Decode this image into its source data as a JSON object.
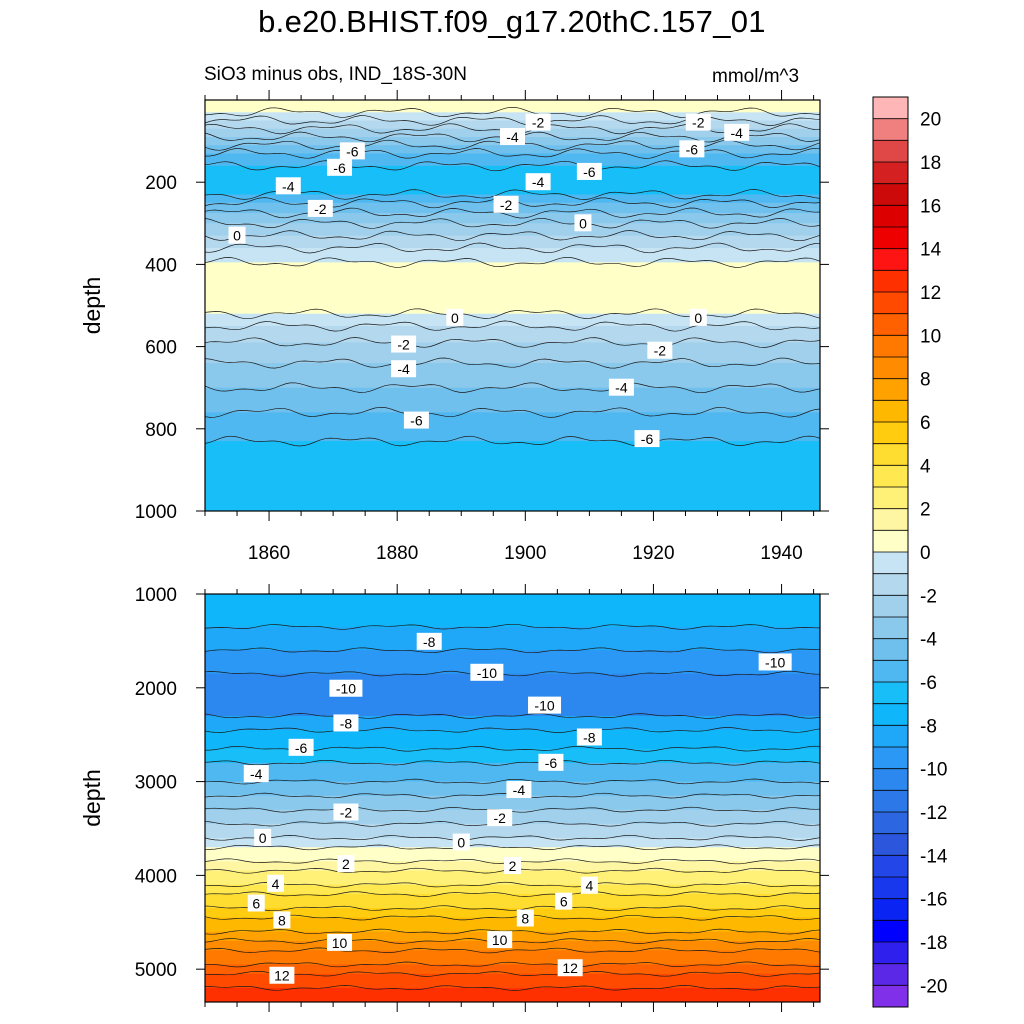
{
  "title": "b.e20.BHIST.f09_g17.20thC.157_01",
  "subtitle": "SiO3 minus obs, IND_18S-30N",
  "units": "mmol/m^3",
  "chart_data": {
    "type": "heatmap",
    "plot_kind": "depth-time filled contour (anomaly)",
    "x": {
      "range": [
        1850,
        1946
      ],
      "ticks": [
        1860,
        1880,
        1900,
        1920,
        1940
      ]
    },
    "panels": [
      {
        "name": "upper",
        "ylabel": "depth",
        "ylim": [
          0,
          1000
        ],
        "yticks": [
          200,
          400,
          600,
          800,
          1000
        ],
        "contour_interval": 1,
        "bands": [
          {
            "from": 0,
            "to": 30,
            "value": 0.5
          },
          {
            "from": 30,
            "to": 50,
            "value": -0.5
          },
          {
            "from": 50,
            "to": 70,
            "value": -1.5
          },
          {
            "from": 70,
            "to": 90,
            "value": -2.5
          },
          {
            "from": 90,
            "to": 110,
            "value": -3.5
          },
          {
            "from": 110,
            "to": 130,
            "value": -4.5
          },
          {
            "from": 130,
            "to": 160,
            "value": -5.5
          },
          {
            "from": 160,
            "to": 230,
            "value": -6.5
          },
          {
            "from": 230,
            "to": 250,
            "value": -5.5
          },
          {
            "from": 250,
            "to": 275,
            "value": -4.5
          },
          {
            "from": 275,
            "to": 300,
            "value": -3.5
          },
          {
            "from": 300,
            "to": 330,
            "value": -2.5
          },
          {
            "from": 330,
            "to": 360,
            "value": -1.5
          },
          {
            "from": 360,
            "to": 395,
            "value": -0.5
          },
          {
            "from": 395,
            "to": 520,
            "value": 0.5
          },
          {
            "from": 520,
            "to": 550,
            "value": -0.5
          },
          {
            "from": 550,
            "to": 590,
            "value": -1.5
          },
          {
            "from": 590,
            "to": 640,
            "value": -2.5
          },
          {
            "from": 640,
            "to": 700,
            "value": -3.5
          },
          {
            "from": 700,
            "to": 760,
            "value": -4.5
          },
          {
            "from": 760,
            "to": 830,
            "value": -5.5
          },
          {
            "from": 830,
            "to": 1000,
            "value": -6.5
          }
        ],
        "labels": [
          {
            "text": "-2",
            "x": 1902,
            "y": 55
          },
          {
            "text": "-2",
            "x": 1927,
            "y": 55
          },
          {
            "text": "-4",
            "x": 1898,
            "y": 90
          },
          {
            "text": "-4",
            "x": 1933,
            "y": 80
          },
          {
            "text": "-6",
            "x": 1873,
            "y": 125
          },
          {
            "text": "-6",
            "x": 1926,
            "y": 120
          },
          {
            "text": "-6",
            "x": 1871,
            "y": 165
          },
          {
            "text": "-6",
            "x": 1910,
            "y": 175
          },
          {
            "text": "-4",
            "x": 1863,
            "y": 210
          },
          {
            "text": "-4",
            "x": 1902,
            "y": 200
          },
          {
            "text": "-2",
            "x": 1868,
            "y": 265
          },
          {
            "text": "-2",
            "x": 1897,
            "y": 255
          },
          {
            "text": "0",
            "x": 1855,
            "y": 330
          },
          {
            "text": "0",
            "x": 1909,
            "y": 300
          },
          {
            "text": "0",
            "x": 1889,
            "y": 530
          },
          {
            "text": "0",
            "x": 1927,
            "y": 530
          },
          {
            "text": "-2",
            "x": 1881,
            "y": 595
          },
          {
            "text": "-2",
            "x": 1921,
            "y": 610
          },
          {
            "text": "-4",
            "x": 1881,
            "y": 655
          },
          {
            "text": "-4",
            "x": 1915,
            "y": 700
          },
          {
            "text": "-6",
            "x": 1883,
            "y": 780
          },
          {
            "text": "-6",
            "x": 1919,
            "y": 825
          }
        ]
      },
      {
        "name": "lower",
        "ylabel": "depth",
        "ylim": [
          1000,
          5350
        ],
        "yticks": [
          1000,
          2000,
          3000,
          4000,
          5000
        ],
        "contour_interval": 1,
        "bands": [
          {
            "from": 1000,
            "to": 1350,
            "value": -7.5
          },
          {
            "from": 1350,
            "to": 1600,
            "value": -8.5
          },
          {
            "from": 1600,
            "to": 1850,
            "value": -9.5
          },
          {
            "from": 1850,
            "to": 2300,
            "value": -10.5
          },
          {
            "from": 2300,
            "to": 2450,
            "value": -8.5
          },
          {
            "from": 2450,
            "to": 2650,
            "value": -7.5
          },
          {
            "from": 2650,
            "to": 2800,
            "value": -6.5
          },
          {
            "from": 2800,
            "to": 3000,
            "value": -5.5
          },
          {
            "from": 3000,
            "to": 3150,
            "value": -4.5
          },
          {
            "from": 3150,
            "to": 3300,
            "value": -3.5
          },
          {
            "from": 3300,
            "to": 3450,
            "value": -2.5
          },
          {
            "from": 3450,
            "to": 3600,
            "value": -1.5
          },
          {
            "from": 3600,
            "to": 3700,
            "value": -0.5
          },
          {
            "from": 3700,
            "to": 3850,
            "value": 0.5
          },
          {
            "from": 3850,
            "to": 3950,
            "value": 1.5
          },
          {
            "from": 3950,
            "to": 4100,
            "value": 2.5
          },
          {
            "from": 4100,
            "to": 4200,
            "value": 3.5
          },
          {
            "from": 4200,
            "to": 4350,
            "value": 4.5
          },
          {
            "from": 4350,
            "to": 4450,
            "value": 5.5
          },
          {
            "from": 4450,
            "to": 4600,
            "value": 6.5
          },
          {
            "from": 4600,
            "to": 4700,
            "value": 7.5
          },
          {
            "from": 4700,
            "to": 4800,
            "value": 8.5
          },
          {
            "from": 4800,
            "to": 4950,
            "value": 9.5
          },
          {
            "from": 4950,
            "to": 5050,
            "value": 10.5
          },
          {
            "from": 5050,
            "to": 5200,
            "value": 11.5
          },
          {
            "from": 5200,
            "to": 5350,
            "value": 12.5
          }
        ],
        "labels": [
          {
            "text": "-8",
            "x": 1885,
            "y": 1510
          },
          {
            "text": "-10",
            "x": 1894,
            "y": 1840
          },
          {
            "text": "-10",
            "x": 1939,
            "y": 1730
          },
          {
            "text": "-10",
            "x": 1872,
            "y": 2010
          },
          {
            "text": "-10",
            "x": 1903,
            "y": 2190
          },
          {
            "text": "-8",
            "x": 1872,
            "y": 2380
          },
          {
            "text": "-8",
            "x": 1910,
            "y": 2530
          },
          {
            "text": "-6",
            "x": 1865,
            "y": 2640
          },
          {
            "text": "-6",
            "x": 1904,
            "y": 2800
          },
          {
            "text": "-4",
            "x": 1858,
            "y": 2920
          },
          {
            "text": "-4",
            "x": 1899,
            "y": 3090
          },
          {
            "text": "-2",
            "x": 1872,
            "y": 3330
          },
          {
            "text": "-2",
            "x": 1896,
            "y": 3390
          },
          {
            "text": "0",
            "x": 1859,
            "y": 3600
          },
          {
            "text": "0",
            "x": 1890,
            "y": 3650
          },
          {
            "text": "2",
            "x": 1872,
            "y": 3880
          },
          {
            "text": "2",
            "x": 1898,
            "y": 3900
          },
          {
            "text": "4",
            "x": 1861,
            "y": 4090
          },
          {
            "text": "4",
            "x": 1910,
            "y": 4110
          },
          {
            "text": "6",
            "x": 1858,
            "y": 4300
          },
          {
            "text": "6",
            "x": 1906,
            "y": 4280
          },
          {
            "text": "8",
            "x": 1862,
            "y": 4480
          },
          {
            "text": "8",
            "x": 1900,
            "y": 4460
          },
          {
            "text": "10",
            "x": 1871,
            "y": 4720
          },
          {
            "text": "10",
            "x": 1896,
            "y": 4690
          },
          {
            "text": "12",
            "x": 1862,
            "y": 5070
          },
          {
            "text": "12",
            "x": 1907,
            "y": 4990
          }
        ]
      }
    ],
    "colorbar": {
      "orientation": "vertical",
      "min": -21,
      "max": 21,
      "step": 1,
      "tick_labels": [
        "20",
        "18",
        "16",
        "14",
        "12",
        "10",
        "8",
        "6",
        "4",
        "2",
        "0",
        "-2",
        "-4",
        "-6",
        "-8",
        "-10",
        "-12",
        "-14",
        "-16",
        "-18",
        "-20"
      ],
      "colors": [
        "#ffb6b6",
        "#f08080",
        "#e04848",
        "#d42020",
        "#cc0a0a",
        "#dd0000",
        "#ee0000",
        "#ff1414",
        "#ff3000",
        "#ff4a00",
        "#ff6000",
        "#ff7800",
        "#ff8c00",
        "#ffa200",
        "#ffb800",
        "#ffcc10",
        "#ffdc30",
        "#ffe850",
        "#fff078",
        "#fff6a4",
        "#ffffc8",
        "#c6e4f4",
        "#b4d8ee",
        "#a0d0ec",
        "#8ac8ec",
        "#70c0ee",
        "#50b8f0",
        "#18bef8",
        "#10b6fa",
        "#20a8f8",
        "#2a98f4",
        "#2c88ee",
        "#2c78e8",
        "#2c66e0",
        "#2c56dc",
        "#2246e8",
        "#1838ee",
        "#0a24f4",
        "#0000ff",
        "#3020ee",
        "#5a28e6",
        "#8030e8"
      ]
    }
  }
}
